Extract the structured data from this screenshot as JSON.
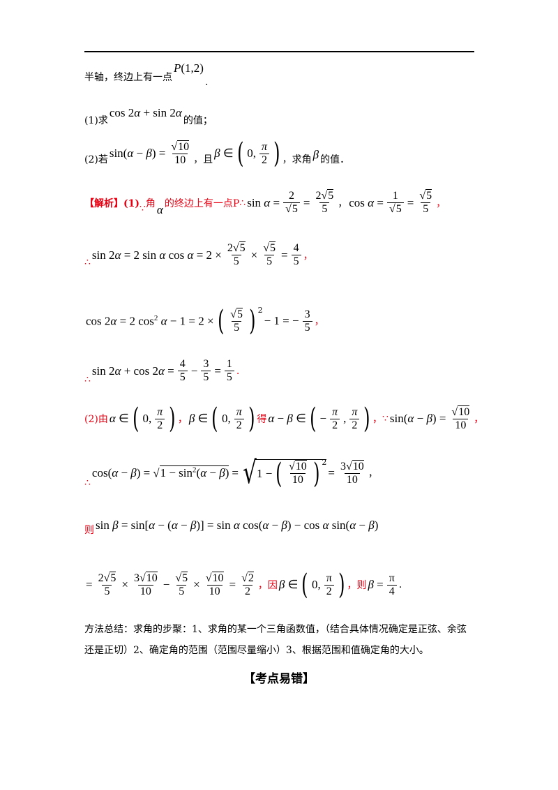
{
  "intro_line": "半轴，终边上有一点",
  "point_label": "P(1,2)",
  "q1_label": "(1)求",
  "q1_expr": "cos 2α + sin 2α",
  "q1_tail": "的值；",
  "q2_label": "(2)若",
  "q2_expr_left": "sin(α − β) =",
  "q2_frac_num": "√10",
  "q2_frac_den": "10",
  "q2_and": "，且",
  "q2_beta_in": "β ∈",
  "q2_tail": "，求角",
  "q2_tail2": "的值．",
  "solution_tag": "【解析】(1)",
  "solution_intro": "角",
  "solution_intro2": "的终边上有一点P",
  "because": "∵",
  "therefore": "∴",
  "then": "则",
  "since": "因",
  "step2_label": "(2)由",
  "get": "得",
  "summary": "方法总结：求角的步聚：1、求角的某一个三角函数值，（结合具体情况确定是正弦、余弦还是正切）2、确定角的范围（范围尽量缩小）3、根据范围和值确定角的大小。",
  "section_heading": "【考点易错】"
}
